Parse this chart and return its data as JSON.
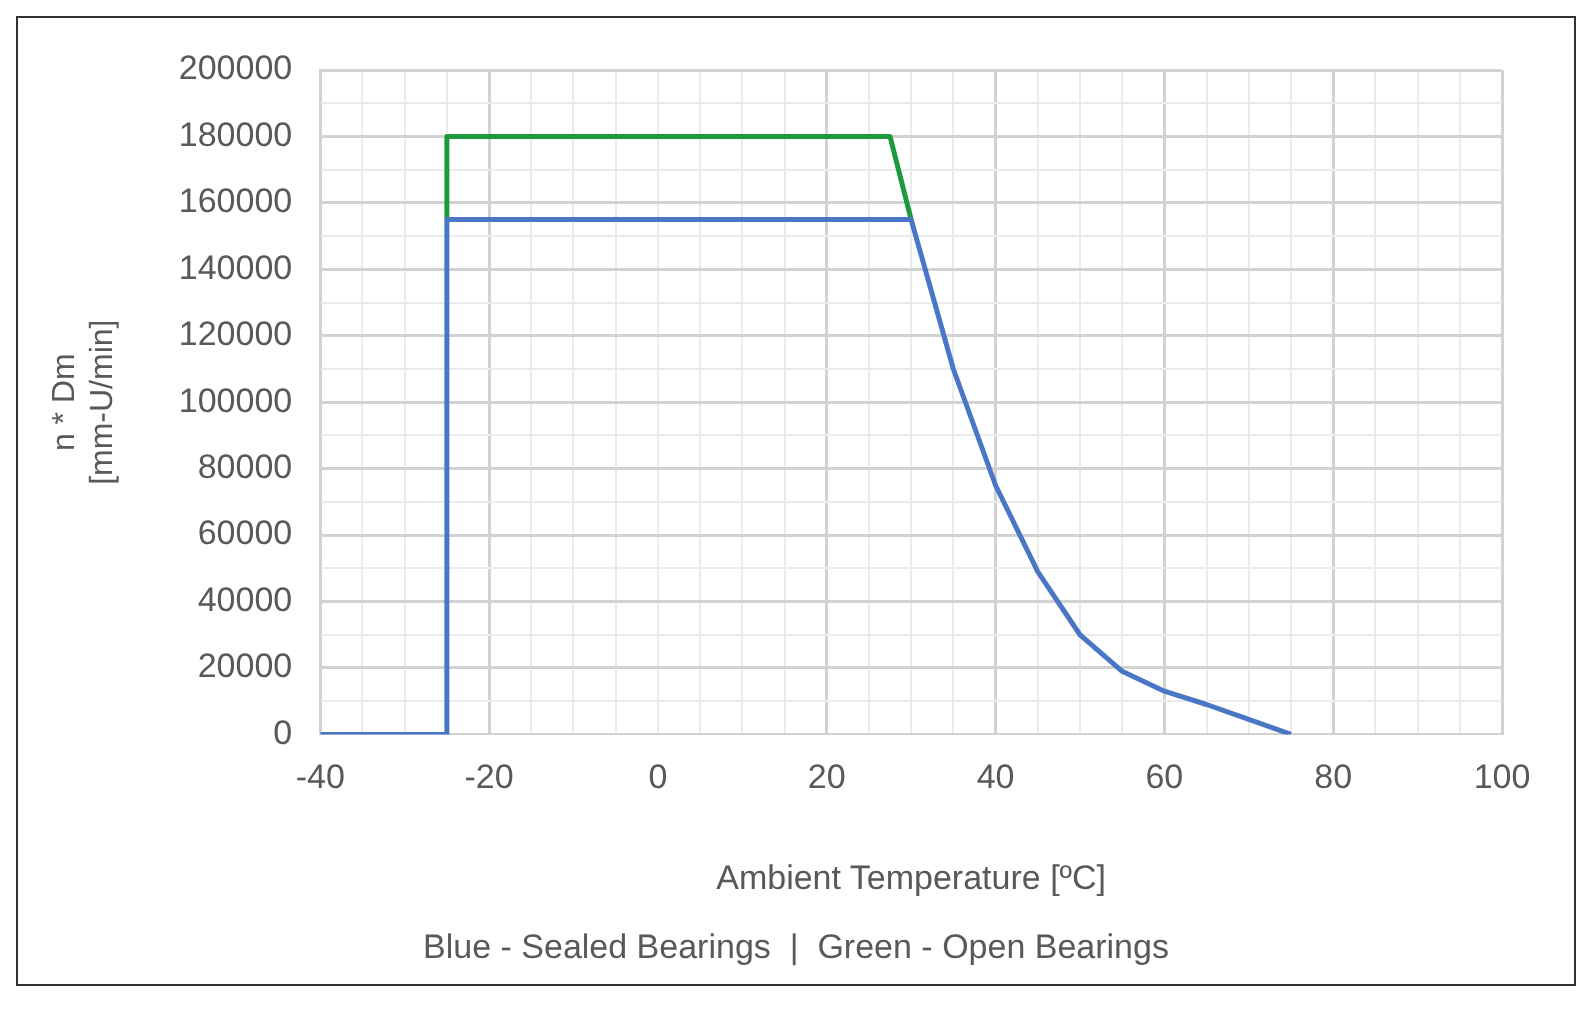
{
  "chart_data": {
    "type": "line",
    "xlabel": "Ambient Temperature [ºC]",
    "ylabel": "n * Dm\n[mm-U/min]",
    "annotations": [
      "Blue - Sealed Bearings  |  Green - Open Bearings"
    ],
    "xlim": [
      -40,
      100
    ],
    "xticks": [
      -40,
      {
        "value": -35,
        "label": null
      },
      {
        "value": -30,
        "label": null
      },
      {
        "value": -25,
        "label": null
      },
      -20,
      {
        "value": -15,
        "label": null
      },
      {
        "value": -10,
        "label": null
      },
      {
        "value": -5,
        "label": null
      },
      0,
      {
        "value": 5,
        "label": null
      },
      {
        "value": 10,
        "label": null
      },
      {
        "value": 15,
        "label": null
      },
      20,
      {
        "value": 25,
        "label": null
      },
      {
        "value": 30,
        "label": null
      },
      {
        "value": 35,
        "label": null
      },
      40,
      {
        "value": 45,
        "label": null
      },
      {
        "value": 50,
        "label": null
      },
      {
        "value": 55,
        "label": null
      },
      60,
      {
        "value": 65,
        "label": null
      },
      {
        "value": 70,
        "label": null
      },
      {
        "value": 75,
        "label": null
      },
      80,
      {
        "value": 85,
        "label": null
      },
      {
        "value": 90,
        "label": null
      },
      {
        "value": 95,
        "label": null
      },
      100
    ],
    "ylim": [
      0,
      200000
    ],
    "yticks": [
      0,
      {
        "value": 10000,
        "label": null
      },
      20000,
      {
        "value": 30000,
        "label": null
      },
      40000,
      {
        "value": 50000,
        "label": null
      },
      60000,
      {
        "value": 70000,
        "label": null
      },
      80000,
      {
        "value": 90000,
        "label": null
      },
      100000,
      {
        "value": 110000,
        "label": null
      },
      120000,
      {
        "value": 130000,
        "label": null
      },
      140000,
      {
        "value": 150000,
        "label": null
      },
      160000,
      {
        "value": 170000,
        "label": null
      },
      180000,
      {
        "value": 190000,
        "label": null
      },
      200000
    ],
    "grid": true,
    "marker": "none",
    "line_style": "solid",
    "series": [
      {
        "color": "#4a76c6",
        "x": [
          -40,
          -25,
          -25,
          30,
          35,
          40,
          45,
          50,
          55,
          60,
          65,
          70,
          75
        ],
        "values": [
          0,
          0,
          155000,
          155000,
          110000,
          75000,
          49000,
          30000,
          19000,
          13000,
          9000,
          4500,
          0
        ]
      },
      {
        "color": "#1e9a3c",
        "x": [
          -25,
          -25,
          27.5,
          30
        ],
        "values": [
          155000,
          180000,
          180000,
          155000
        ]
      }
    ]
  }
}
